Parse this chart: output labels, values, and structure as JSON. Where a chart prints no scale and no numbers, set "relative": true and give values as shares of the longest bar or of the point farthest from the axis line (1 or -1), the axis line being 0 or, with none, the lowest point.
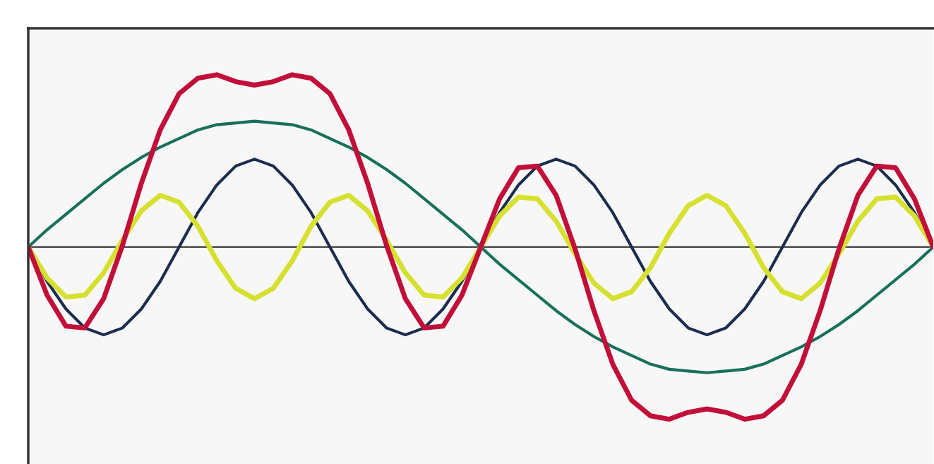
{
  "chart_data": {
    "type": "line",
    "relative": true,
    "categories": [
      null,
      null,
      null,
      null,
      null,
      null,
      null,
      null,
      null,
      null,
      null,
      null,
      null,
      null,
      null,
      null,
      null,
      null,
      null,
      null,
      null,
      null,
      null,
      null,
      null,
      null,
      null,
      null,
      null,
      null,
      null,
      null,
      null,
      null,
      null,
      null,
      null,
      null,
      null,
      null,
      null,
      null,
      null,
      null,
      null,
      null,
      null,
      null,
      null
    ],
    "series": [
      {
        "color": "#17705a",
        "values": [
          0,
          0.1,
          0.19,
          0.28,
          0.37,
          0.45,
          0.52,
          0.58,
          0.63,
          0.68,
          0.71,
          0.72,
          0.73,
          0.72,
          0.71,
          0.68,
          0.63,
          0.58,
          0.52,
          0.45,
          0.37,
          0.28,
          0.19,
          0.1,
          0,
          -0.1,
          -0.19,
          -0.28,
          -0.37,
          -0.45,
          -0.52,
          -0.58,
          -0.63,
          -0.68,
          -0.71,
          -0.72,
          -0.73,
          -0.72,
          -0.71,
          -0.68,
          -0.63,
          -0.58,
          -0.52,
          -0.45,
          -0.37,
          -0.28,
          -0.19,
          -0.1,
          0
        ]
      },
      {
        "color": "#1b2d4f",
        "values": [
          0,
          -0.2,
          -0.36,
          -0.47,
          -0.51,
          -0.47,
          -0.36,
          -0.2,
          0,
          0.2,
          0.36,
          0.47,
          0.51,
          0.47,
          0.36,
          0.2,
          0,
          -0.2,
          -0.36,
          -0.47,
          -0.51,
          -0.47,
          -0.36,
          -0.2,
          0,
          0.2,
          0.36,
          0.47,
          0.51,
          0.47,
          0.36,
          0.2,
          0,
          -0.2,
          -0.36,
          -0.47,
          -0.51,
          -0.47,
          -0.36,
          -0.2,
          0,
          0.2,
          0.36,
          0.47,
          0.51,
          0.47,
          0.36,
          0.2,
          0
        ]
      },
      {
        "color": "#d6e02e",
        "values": [
          0,
          -0.18,
          -0.29,
          -0.28,
          -0.15,
          0.04,
          0.21,
          0.3,
          0.26,
          0.12,
          -0.08,
          -0.24,
          -0.3,
          -0.24,
          -0.08,
          0.12,
          0.26,
          0.3,
          0.21,
          0.04,
          -0.15,
          -0.28,
          -0.29,
          -0.18,
          0,
          0.18,
          0.29,
          0.28,
          0.15,
          -0.04,
          -0.21,
          -0.3,
          -0.26,
          -0.12,
          0.08,
          0.24,
          0.3,
          0.24,
          0.08,
          -0.12,
          -0.26,
          -0.3,
          -0.21,
          -0.04,
          0.15,
          0.28,
          0.29,
          0.18,
          0
        ]
      },
      {
        "color": "#c20f3a",
        "values": [
          0,
          -0.28,
          -0.46,
          -0.47,
          -0.3,
          0.01,
          0.37,
          0.68,
          0.89,
          0.98,
          1,
          0.96,
          0.94,
          0.96,
          1,
          0.98,
          0.89,
          0.68,
          0.37,
          0.01,
          -0.3,
          -0.47,
          -0.46,
          -0.28,
          0,
          0.28,
          0.46,
          0.47,
          0.3,
          -0.01,
          -0.37,
          -0.68,
          -0.89,
          -0.98,
          -1,
          -0.96,
          -0.94,
          -0.96,
          -1,
          -0.98,
          -0.89,
          -0.68,
          -0.37,
          -0.01,
          0.3,
          0.47,
          0.46,
          0.28,
          0
        ]
      }
    ]
  }
}
